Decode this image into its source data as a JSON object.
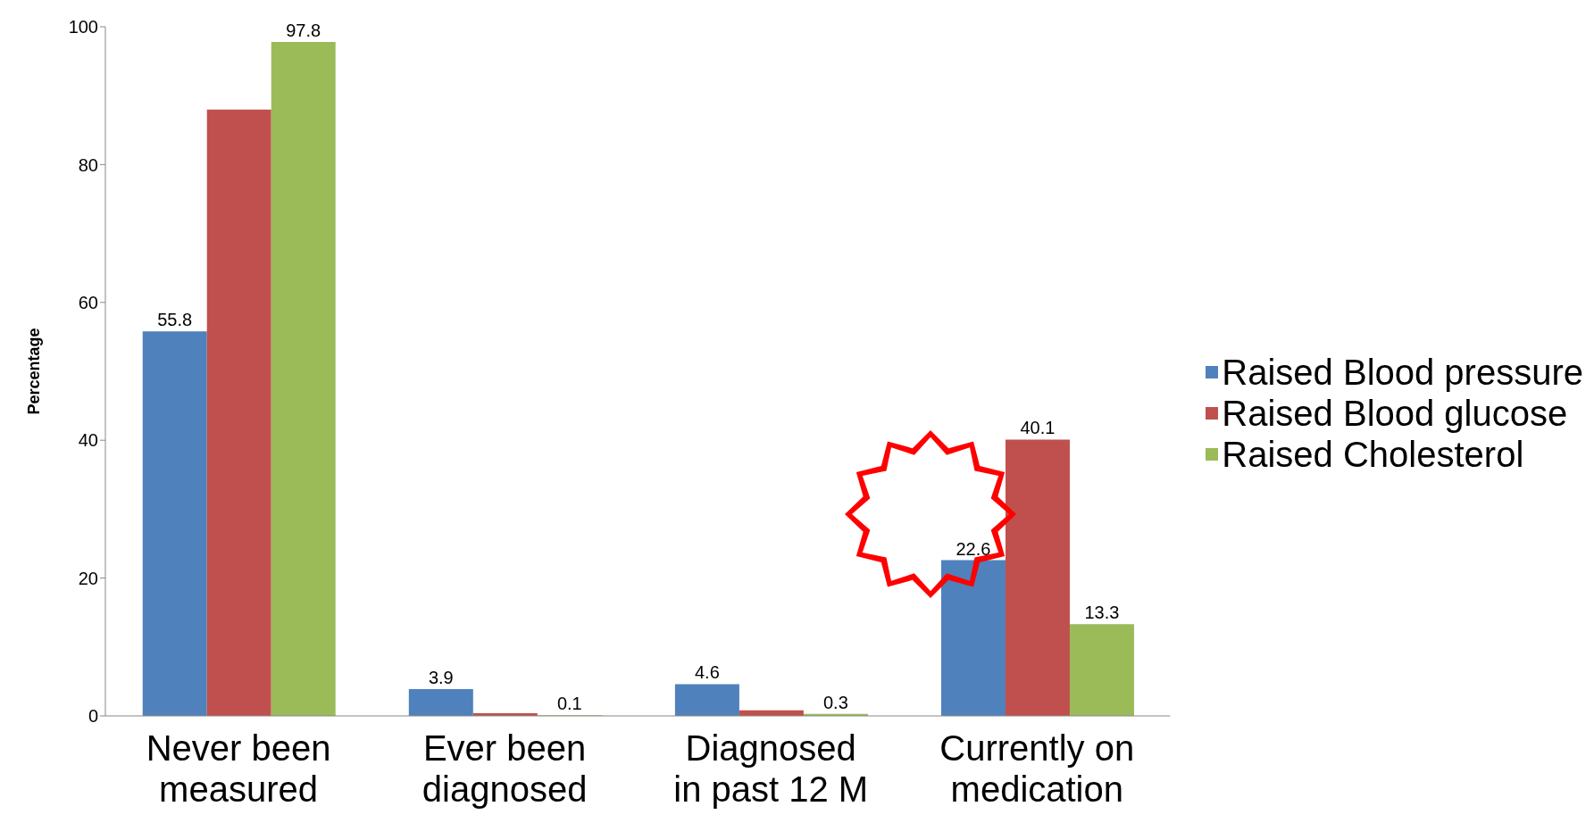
{
  "chart_data": {
    "type": "bar",
    "ylabel": "Percentage",
    "categories": [
      "Never been measured",
      "Ever been diagnosed",
      "Diagnosed in past 12 M",
      "Currently on medication"
    ],
    "series": [
      {
        "name": "Raised Blood pressure",
        "color": "#4f81bd",
        "values": [
          55.8,
          3.9,
          4.6,
          22.6
        ],
        "value_labels": [
          "55.8",
          "3.9",
          "4.6",
          "22.6"
        ]
      },
      {
        "name": "Raised Blood glucose",
        "color": "#c0504d",
        "values": [
          88.0,
          0.4,
          0.8,
          40.1
        ],
        "value_labels": [
          null,
          null,
          null,
          "40.1"
        ]
      },
      {
        "name": "Raised Cholesterol",
        "color": "#9bbb59",
        "values": [
          97.8,
          0.1,
          0.3,
          13.3
        ],
        "value_labels": [
          "97.8",
          "0.1",
          "0.3",
          "13.3"
        ]
      }
    ],
    "ylim": [
      0,
      100
    ],
    "yticks": [
      0,
      20,
      40,
      60,
      80,
      100
    ],
    "grid": false,
    "legend": "right"
  }
}
